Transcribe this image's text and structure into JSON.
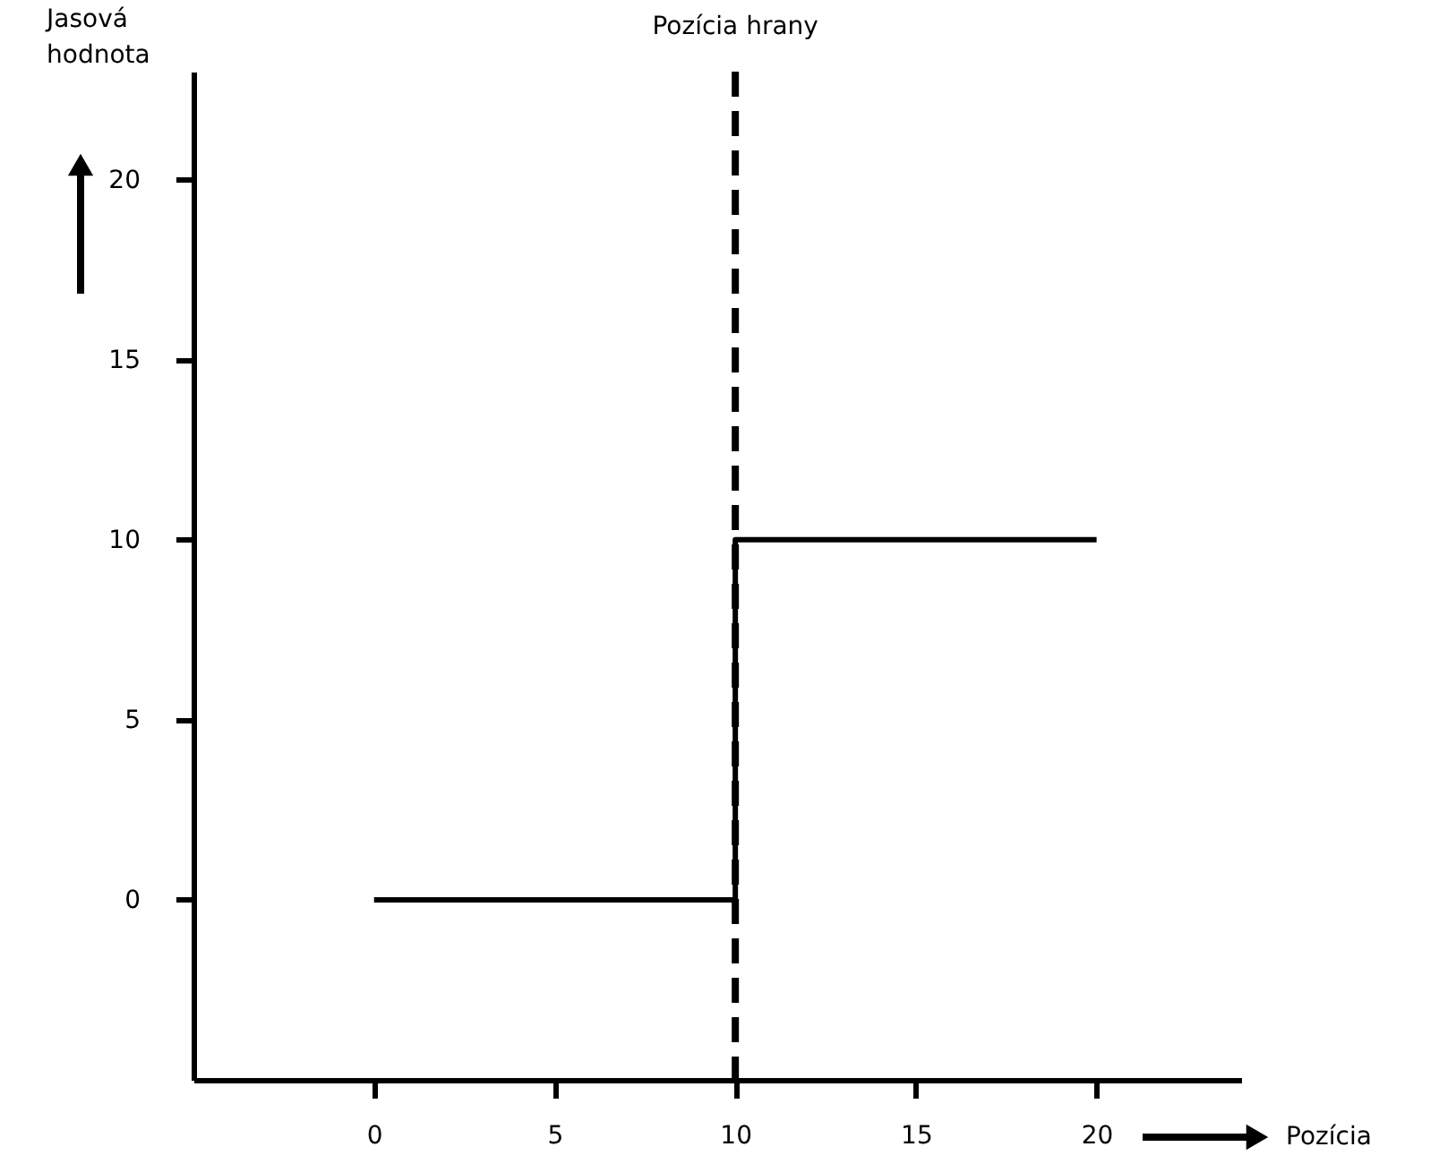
{
  "chart_data": {
    "type": "line",
    "xlabel": "Pozícia",
    "ylabel": "Jasová hodnota",
    "series": [
      {
        "x": [
          0,
          10,
          10,
          20
        ],
        "values": [
          0,
          0,
          10,
          10
        ],
        "color": "#000000"
      }
    ],
    "xlim": [
      -5,
      24
    ],
    "ylim": [
      -5,
      23
    ],
    "xticks": [
      0,
      5,
      10,
      15,
      20
    ],
    "yticks": [
      0,
      5,
      10,
      15,
      20
    ],
    "ref_lines": [
      {
        "axis": "x",
        "value": 10,
        "label": "Pozícia hrany",
        "color": "#000000",
        "line_style": "dashed"
      }
    ],
    "grid": false,
    "marker": "none",
    "line_style": "solid"
  }
}
